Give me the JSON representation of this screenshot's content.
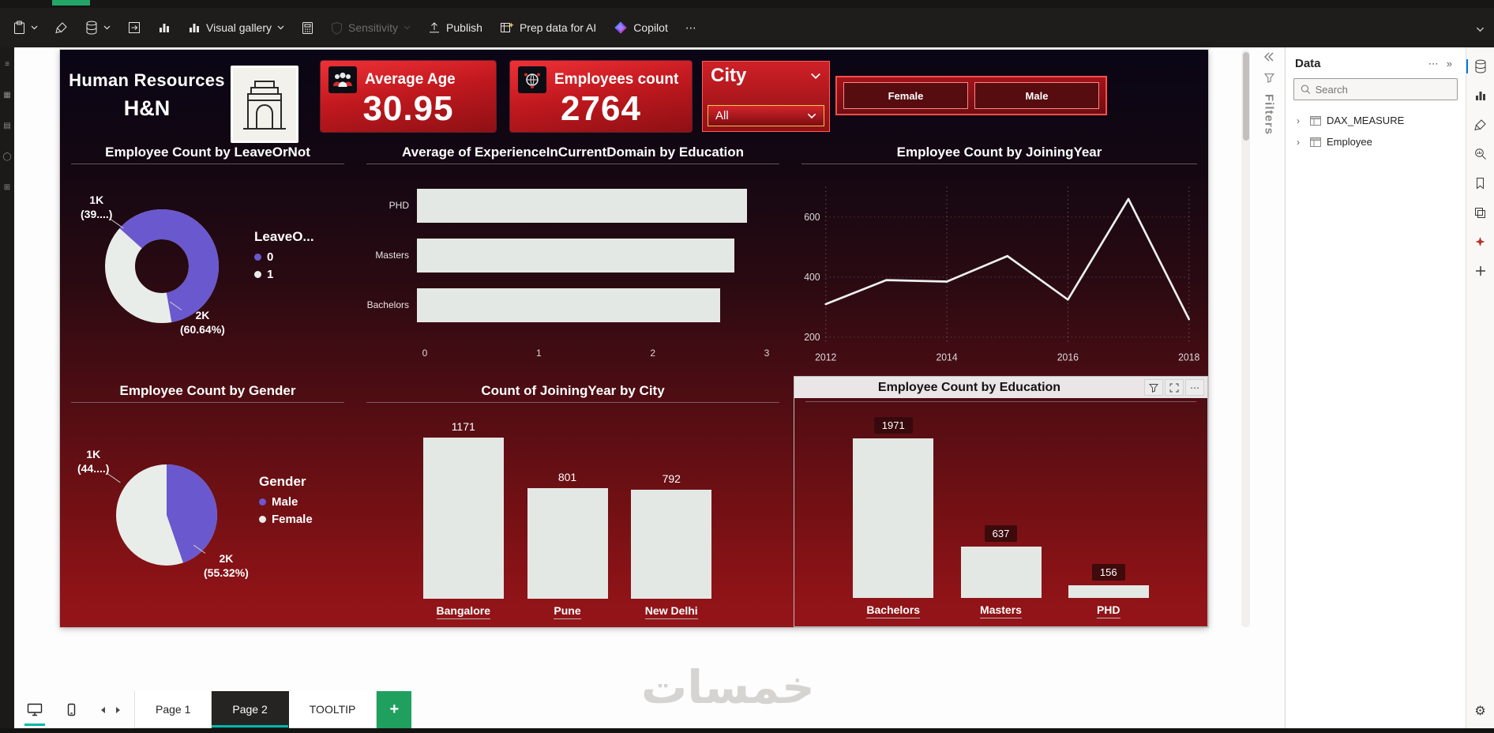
{
  "toolbar": {
    "visual_gallery_label": "Visual gallery",
    "sensitivity_label": "Sensitivity",
    "publish_label": "Publish",
    "prep_data_label": "Prep data for AI",
    "copilot_label": "Copilot",
    "more_label": "⋯"
  },
  "dashboard": {
    "title_line1": "Human Resources",
    "title_line2": "H&N",
    "cards": [
      {
        "label": "Average Age",
        "value": "30.95"
      },
      {
        "label": "Employees count",
        "value": "2764"
      }
    ],
    "city_slicer": {
      "title": "City",
      "selected": "All"
    },
    "gender_buttons": [
      "Female",
      "Male"
    ]
  },
  "chart_data": [
    {
      "id": "leave_donut",
      "type": "pie",
      "donut": true,
      "title": "Employee Count by LeaveOrNot",
      "legend_title": "LeaveO...",
      "legend_position": "right",
      "start_angle": -48,
      "slices": [
        {
          "label": "0",
          "pct": 60.64,
          "value_label": "2K (60.64%)",
          "color": "#6A58CE"
        },
        {
          "label": "1",
          "pct": 39.36,
          "value_label": "1K (39....)",
          "color": "#E9EDEA"
        }
      ],
      "callouts": [
        {
          "text": "1K\n(39....)"
        },
        {
          "text": "2K\n(60.64%)"
        }
      ]
    },
    {
      "id": "exp_by_edu",
      "type": "hbar",
      "title": "Average of ExperienceInCurrentDomain by Education",
      "categories": [
        "PHD",
        "Masters",
        "Bachelors"
      ],
      "values": [
        2.83,
        2.72,
        2.6
      ],
      "xlim": [
        0,
        3
      ],
      "xticks": [
        0,
        1,
        2,
        3
      ],
      "bar_color": "#E4E8E5"
    },
    {
      "id": "join_year_line",
      "type": "line",
      "title": "Employee Count by JoiningYear",
      "x": [
        2012,
        2013,
        2014,
        2015,
        2016,
        2017,
        2018
      ],
      "values": [
        310,
        390,
        385,
        470,
        325,
        660,
        260
      ],
      "yticks": [
        200,
        400,
        600
      ],
      "xticks": [
        2012,
        2014,
        2016,
        2018
      ],
      "ylim": [
        180,
        700
      ],
      "grid": "dotted",
      "line_color": "#EDF0ED"
    },
    {
      "id": "gender_pie",
      "type": "pie",
      "donut": false,
      "title": "Employee Count by Gender",
      "legend_title": "Gender",
      "legend_position": "right",
      "start_angle": 0,
      "slices": [
        {
          "label": "Male",
          "pct": 44.68,
          "value_label": "1K (44....)",
          "color": "#6A58CE"
        },
        {
          "label": "Female",
          "pct": 55.32,
          "value_label": "2K (55.32%)",
          "color": "#E9EDEA"
        }
      ],
      "callouts": [
        {
          "text": "1K\n(44....)"
        },
        {
          "text": "2K\n(55.32%)"
        }
      ]
    },
    {
      "id": "city_col",
      "type": "column",
      "title": "Count of JoiningYear by City",
      "categories": [
        "Bangalore",
        "Pune",
        "New Delhi"
      ],
      "values": [
        1171,
        801,
        792
      ],
      "label_style": "plain",
      "bar_color": "#E4E8E5"
    },
    {
      "id": "edu_col",
      "type": "column",
      "title": "Employee Count by Education",
      "categories": [
        "Bachelors",
        "Masters",
        "PHD"
      ],
      "values": [
        1971,
        637,
        156
      ],
      "label_style": "boxed",
      "bar_color": "#E4E8E5"
    }
  ],
  "filters_label": "Filters",
  "data_pane": {
    "title": "Data",
    "more_label": "⋯",
    "collapse_label": "»",
    "search_placeholder": "Search",
    "items": [
      "DAX_MEASURE",
      "Employee"
    ]
  },
  "pages": {
    "tabs": [
      "Page 1",
      "Page 2",
      "TOOLTIP"
    ],
    "active": "Page 2",
    "add_label": "+"
  },
  "watermark": "خمسات",
  "colors": {
    "accent_teal": "#00B7A8",
    "brand_red": "#C2191F",
    "series_purple": "#6A58CE",
    "series_white": "#E9EDEA",
    "add_page_green": "#1FA05E"
  }
}
